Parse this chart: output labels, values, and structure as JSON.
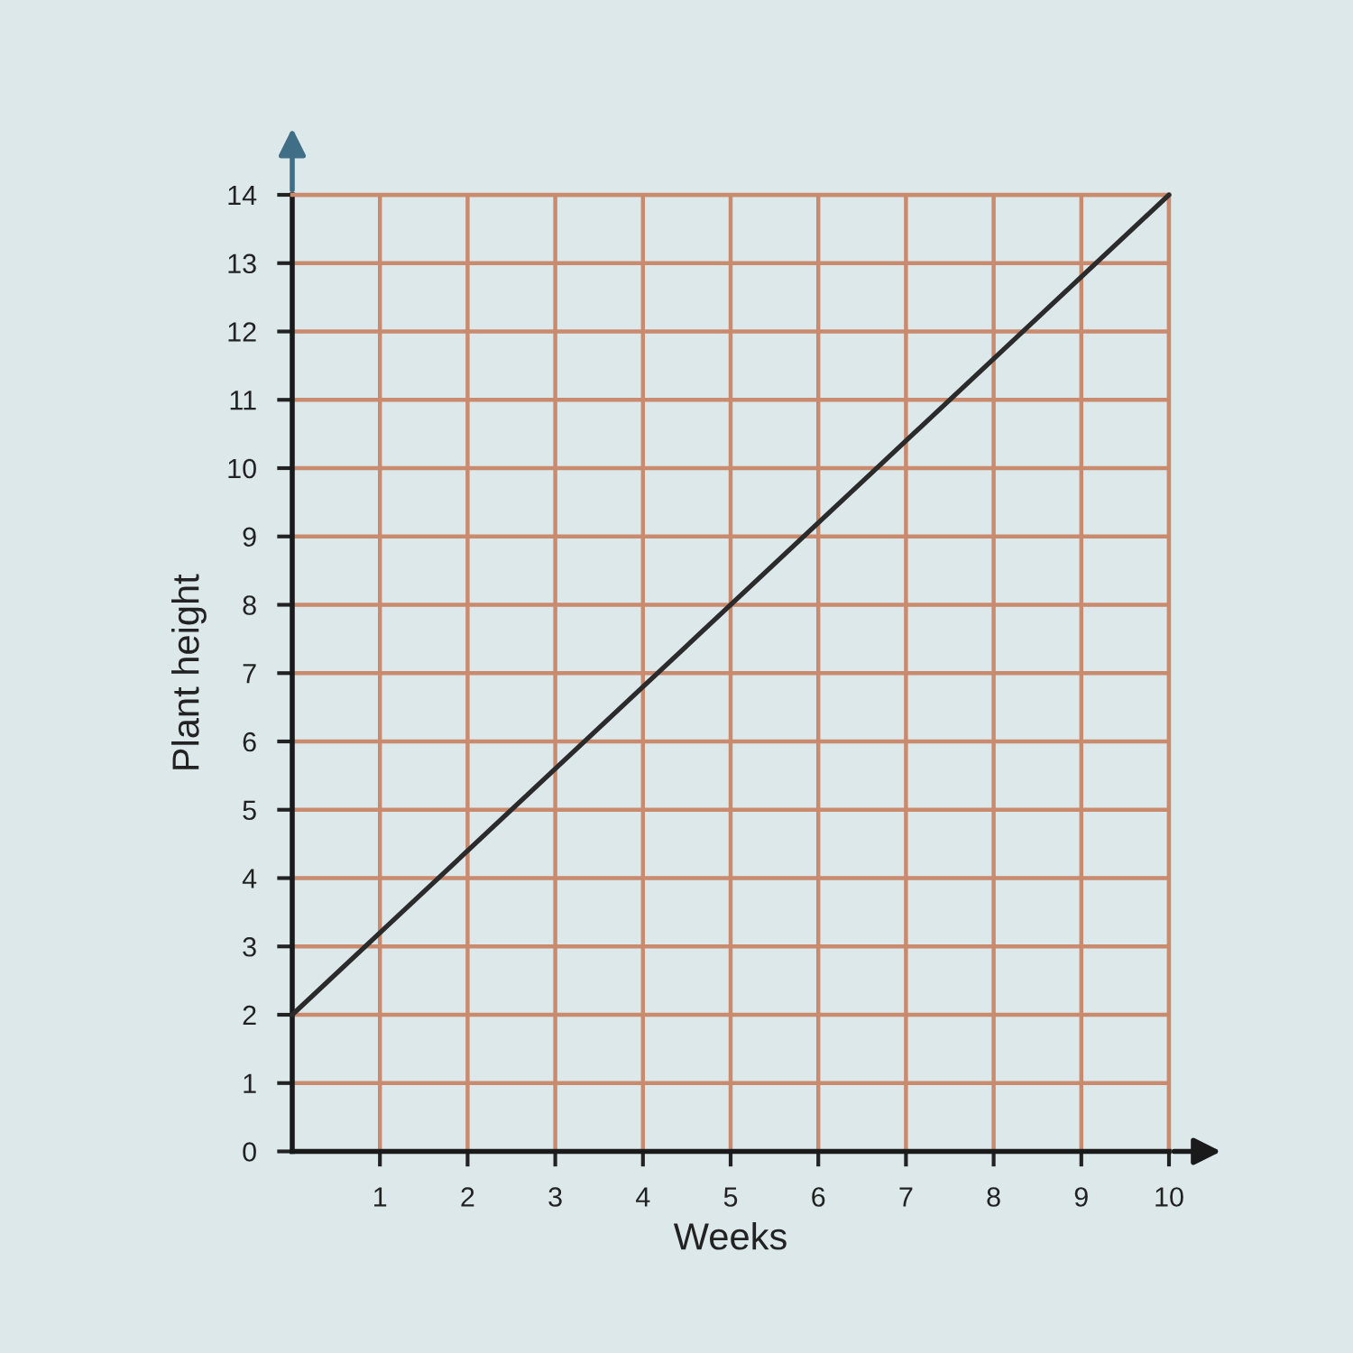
{
  "chart_data": {
    "type": "line",
    "xlabel": "Weeks",
    "ylabel": "Plant height",
    "x": [
      0,
      10
    ],
    "series": [
      {
        "color": "#2b2b2b",
        "values": [
          2,
          14
        ]
      }
    ],
    "marker": "none",
    "line_style": "solid",
    "xlim": [
      0,
      10
    ],
    "ylim": [
      0,
      14
    ],
    "xticks": [
      1,
      2,
      3,
      4,
      5,
      6,
      7,
      8,
      9,
      10
    ],
    "yticks": [
      0,
      1,
      2,
      3,
      4,
      5,
      6,
      7,
      8,
      9,
      10,
      11,
      12,
      13,
      14
    ],
    "grid": true
  }
}
